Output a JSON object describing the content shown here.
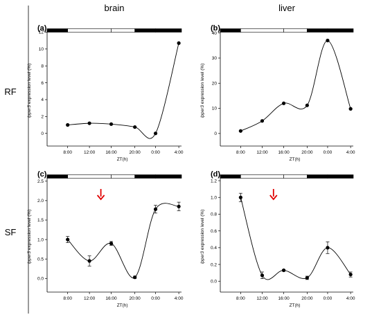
{
  "figure": {
    "columns": [
      "brain",
      "liver"
    ],
    "rows": [
      "RF",
      "SF"
    ],
    "xlabel": "ZT(h)",
    "ylabel_italic": "lpper3",
    "ylabel_rest": " expression level (%)",
    "light_bar_colors": {
      "dark": "#000000",
      "light": "#ffffff"
    },
    "arrow_color": "#e00000",
    "curve_color": "#000000",
    "marker_color": "#000000"
  },
  "chart_data": [
    {
      "panel": "(a)",
      "type": "line",
      "column": "brain",
      "row": "RF",
      "x": [
        "8:00",
        "12:00",
        "16:00",
        "20:00",
        "0:00",
        "4:00"
      ],
      "yticks": [
        "0",
        "2",
        "4",
        "6",
        "8",
        "10",
        "12"
      ],
      "ylim": [
        -1.5,
        12.2
      ],
      "series": [
        {
          "values": [
            1.0,
            1.2,
            1.1,
            0.75,
            0.0,
            10.7
          ]
        }
      ],
      "light_bar": [
        "dark",
        "light",
        "light",
        "dark",
        "dark"
      ],
      "arrow": false
    },
    {
      "panel": "(b)",
      "type": "line",
      "column": "liver",
      "row": "RF",
      "x": [
        "8:00",
        "12:00",
        "16:00",
        "20:00",
        "0:00",
        "4:00"
      ],
      "yticks": [
        "0",
        "10",
        "20",
        "30",
        "40"
      ],
      "ylim": [
        -5,
        41
      ],
      "series": [
        {
          "values": [
            1.0,
            5.0,
            12.0,
            11.2,
            37.0,
            9.8
          ]
        }
      ],
      "light_bar": [
        "dark",
        "light",
        "light",
        "dark",
        "dark"
      ],
      "arrow": false
    },
    {
      "panel": "(c)",
      "type": "line",
      "column": "brain",
      "row": "SF",
      "x": [
        "8:00",
        "12:00",
        "16:00",
        "20:00",
        "0:00",
        "4:00"
      ],
      "yticks": [
        "0.0",
        "0.5",
        "1.0",
        "1.5",
        "2.0",
        "2.5"
      ],
      "ylim": [
        -0.35,
        2.62
      ],
      "series": [
        {
          "values": [
            1.0,
            0.45,
            0.9,
            0.03,
            1.78,
            1.85
          ],
          "errors": [
            0.08,
            0.13,
            0.05,
            0.03,
            0.1,
            0.11
          ]
        }
      ],
      "light_bar": [
        "dark",
        "light",
        "light",
        "dark",
        "dark"
      ],
      "arrow": true
    },
    {
      "panel": "(d)",
      "type": "line",
      "column": "liver",
      "row": "SF",
      "x": [
        "8:00",
        "12:00",
        "16:00",
        "20:00",
        "0:00",
        "4:00"
      ],
      "yticks": [
        "0.0",
        "0.2",
        "0.4",
        "0.6",
        "0.8",
        "1.0",
        "1.2"
      ],
      "ylim": [
        -0.13,
        1.25
      ],
      "series": [
        {
          "values": [
            1.0,
            0.07,
            0.13,
            0.04,
            0.4,
            0.08
          ],
          "errors": [
            0.05,
            0.04,
            0.01,
            0.02,
            0.07,
            0.03
          ]
        }
      ],
      "light_bar": [
        "dark",
        "light",
        "light",
        "dark",
        "dark"
      ],
      "arrow": true
    }
  ]
}
